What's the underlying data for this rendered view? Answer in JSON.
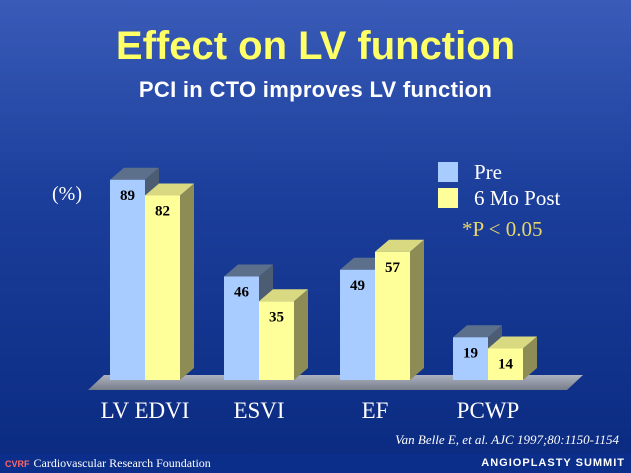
{
  "title": "Effect on LV function",
  "subtitle": "PCI in CTO improves LV function",
  "chart_data": {
    "type": "bar",
    "unit_label": "(%)",
    "categories": [
      "LV EDVI",
      "ESVI",
      "EF",
      "PCWP"
    ],
    "series": [
      {
        "name": "Pre",
        "values": [
          89,
          46,
          49,
          19
        ],
        "color": "#a8ccff"
      },
      {
        "name": "6 Mo Post",
        "values": [
          82,
          35,
          57,
          14
        ],
        "color": "#ffff99"
      }
    ],
    "ylim": [
      0,
      95
    ],
    "legend_position": "top-right",
    "annotation": "*P < 0.05"
  },
  "citation": "Van Belle E, et al. AJC 1997;80:1150-1154",
  "footer": {
    "logo_text": "CVRF",
    "org": "Cardiovascular Research Foundation",
    "event": "ANGIOPLASTY SUMMIT"
  }
}
